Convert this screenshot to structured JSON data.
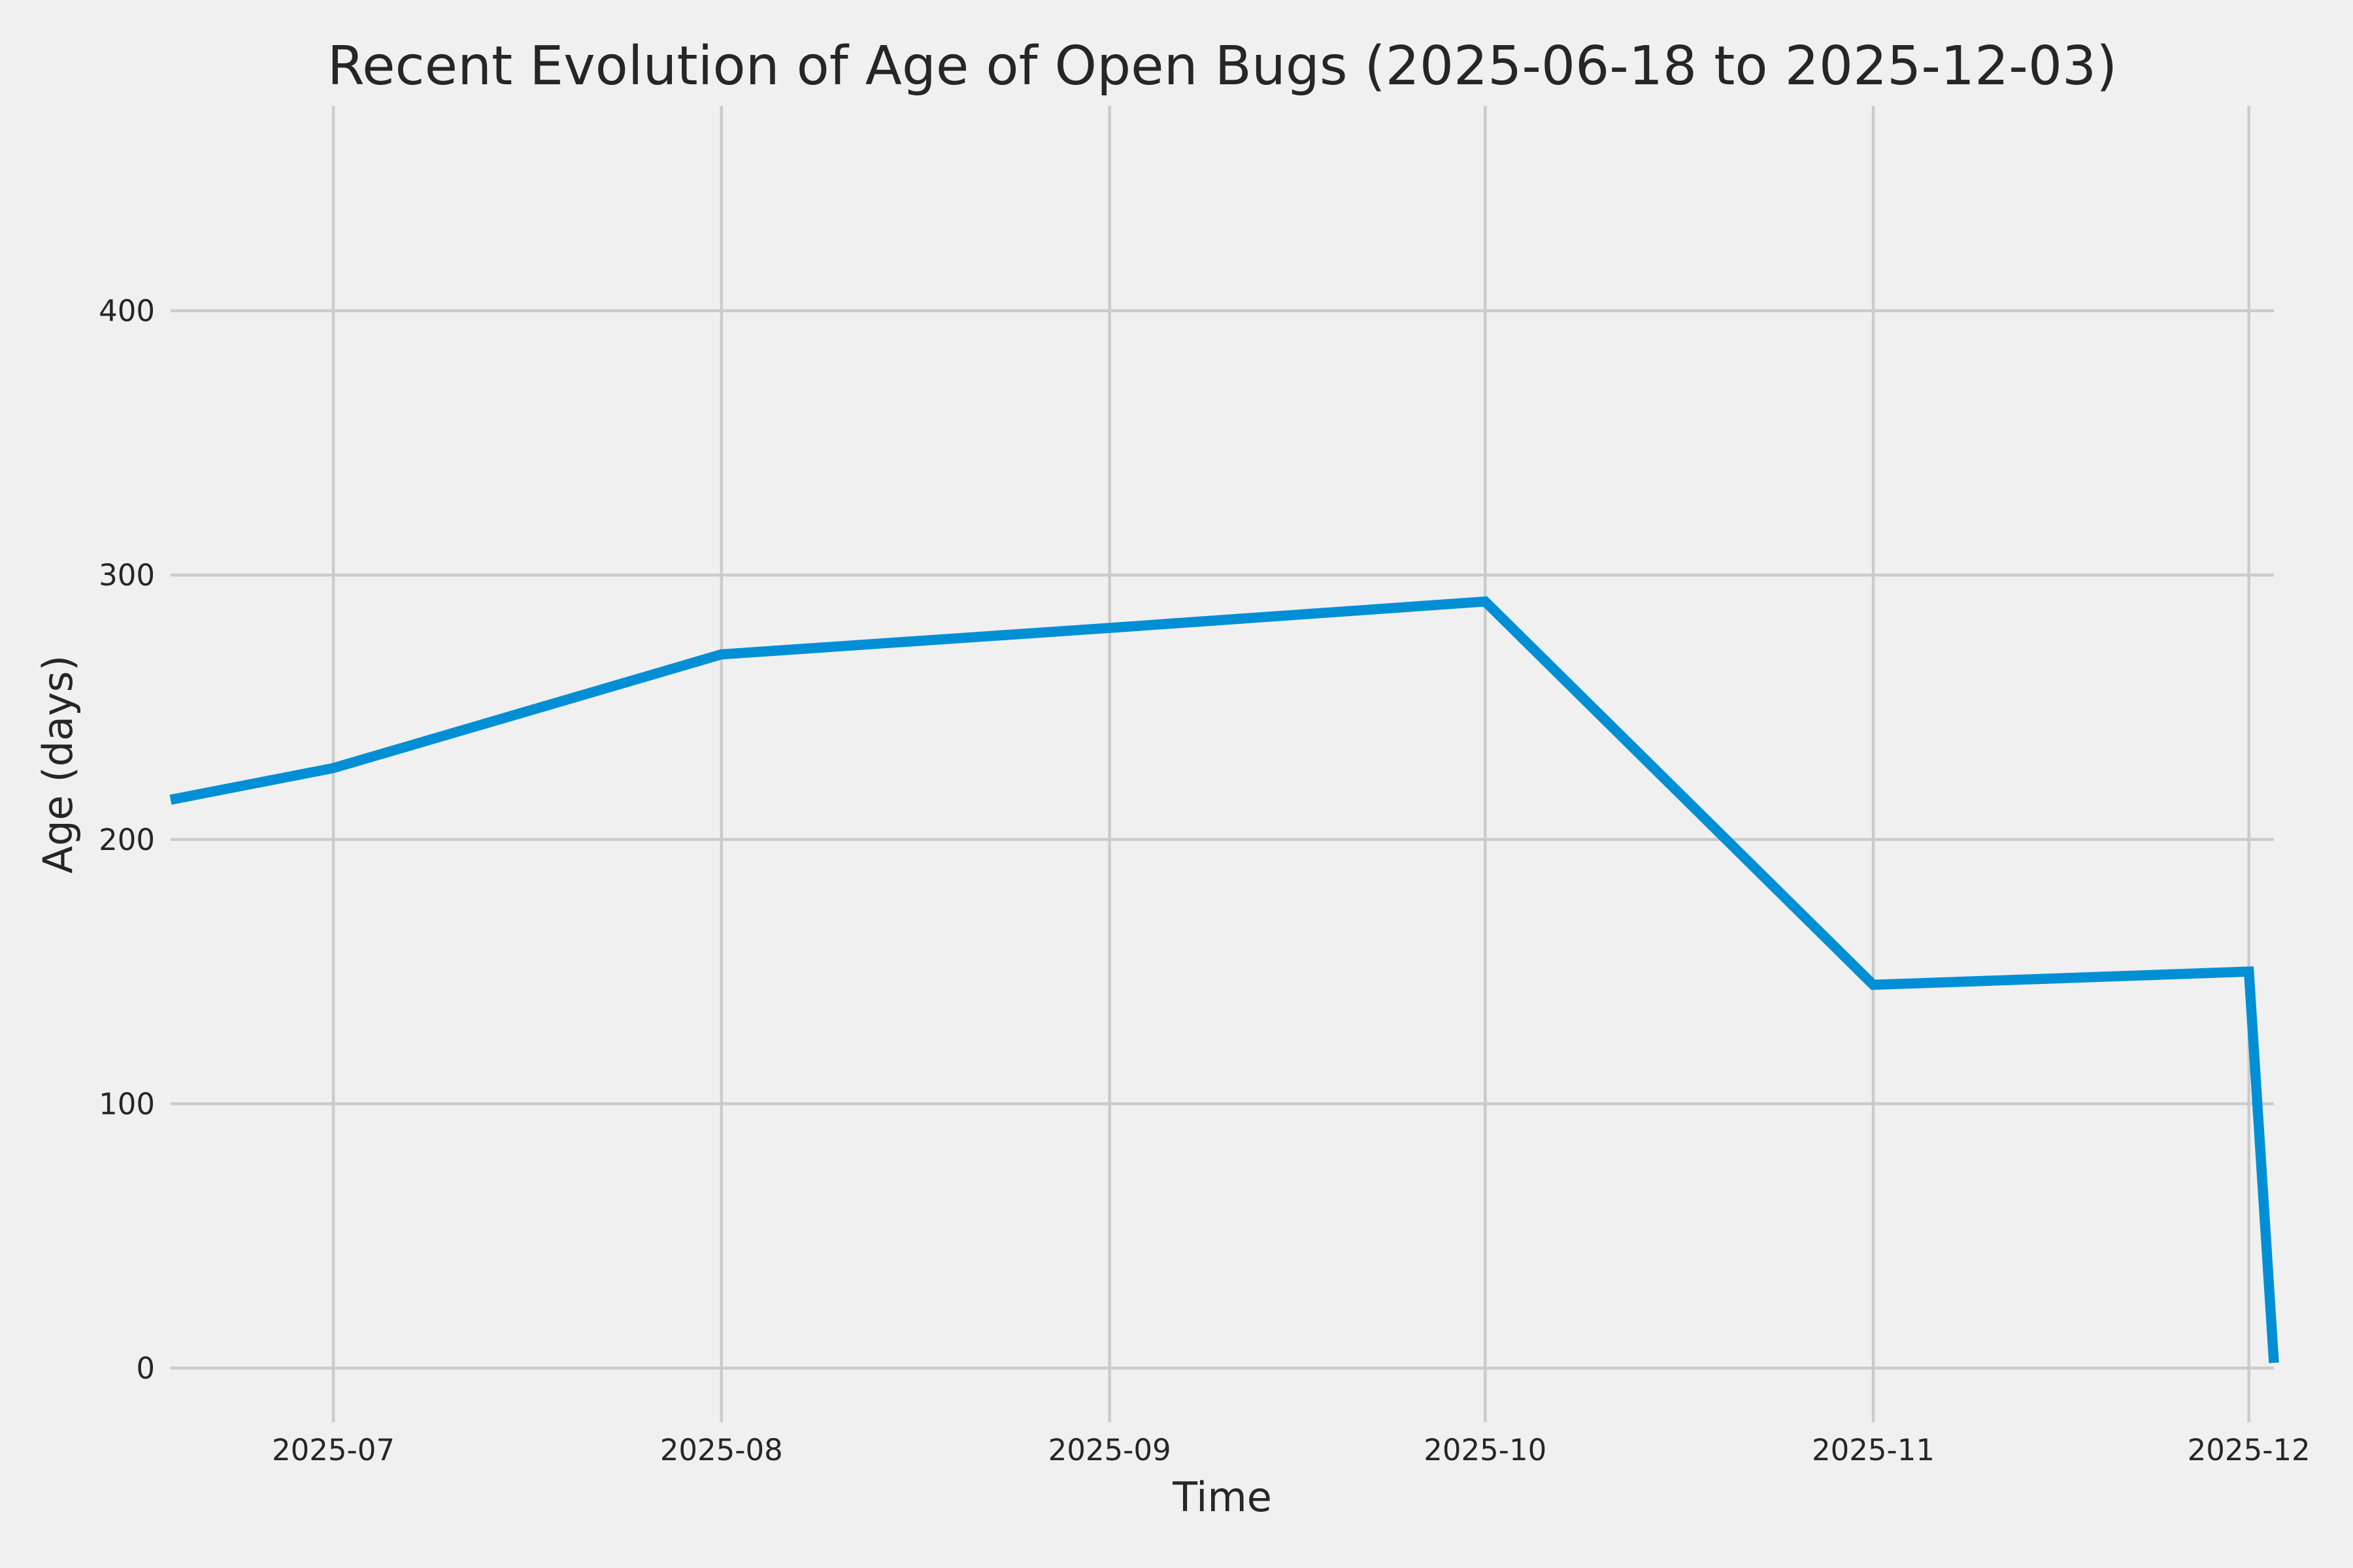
{
  "page": {
    "background_color": "#f0f0f0"
  },
  "chart_data": {
    "type": "line",
    "title": "Recent Evolution of Age of Open Bugs (2025-06-18 to 2025-12-03)",
    "xlabel": "Time",
    "ylabel": "Age (days)",
    "x": [
      "2025-06-18",
      "2025-07-01",
      "2025-08-01",
      "2025-09-01",
      "2025-10-01",
      "2025-11-01",
      "2025-12-01",
      "2025-12-03"
    ],
    "y": [
      215,
      227,
      270,
      280,
      290,
      145,
      150,
      2
    ],
    "series_name": "Age of open bugs",
    "x_ticks": [
      {
        "date": "2025-07-01",
        "label": "2025-07"
      },
      {
        "date": "2025-08-01",
        "label": "2025-08"
      },
      {
        "date": "2025-09-01",
        "label": "2025-09"
      },
      {
        "date": "2025-10-01",
        "label": "2025-10"
      },
      {
        "date": "2025-11-01",
        "label": "2025-11"
      },
      {
        "date": "2025-12-01",
        "label": "2025-12"
      }
    ],
    "y_ticks": [
      0,
      100,
      200,
      300,
      400
    ],
    "xlim": [
      "2025-06-18",
      "2025-12-03"
    ],
    "ylim": [
      -20.5,
      477.5
    ],
    "grid": true,
    "legend": false,
    "line_color": "#008fd5",
    "gridline_color": "#cbcbcb",
    "background_color": "#f0f0f0",
    "text_color": "#262626"
  }
}
